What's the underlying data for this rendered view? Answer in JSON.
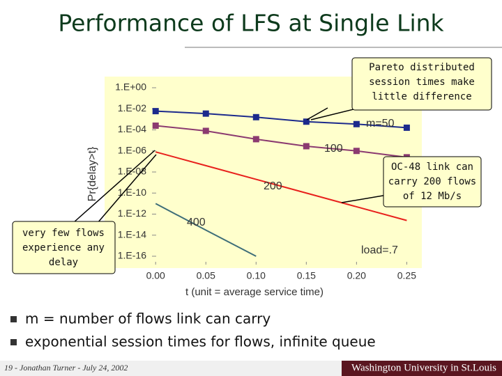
{
  "slide": {
    "title": "Performance of LFS at Single Link",
    "callouts": [
      "Pareto distributed",
      "session times make",
      "little difference",
      "OC-48 link can",
      "carry 200 flows",
      "of 12 Mb/s",
      "very few flows",
      "experience any",
      "delay"
    ],
    "bullets": [
      "m = number of flows link can carry",
      "exponential session times for flows, infinite queue"
    ],
    "footer": "19 - Jonathan Turner - July 24, 2002",
    "logo": "Washington University in St.Louis"
  },
  "chart_data": {
    "type": "line",
    "ylabel": "Pr{delay>t}",
    "xlabel": "t (unit = average service time)",
    "annotation": "load=.7",
    "yscale": "log",
    "x": [
      0,
      0.05,
      0.1,
      0.15,
      0.2,
      0.25
    ],
    "xlim": [
      -0.03,
      0.265
    ],
    "xticks": [
      {
        "value": 0,
        "label": "0.00"
      },
      {
        "value": 0.05,
        "label": "0.05"
      },
      {
        "value": 0.1,
        "label": "0.10"
      },
      {
        "value": 0.15,
        "label": "0.15"
      },
      {
        "value": 0.2,
        "label": "0.20"
      },
      {
        "value": 0.25,
        "label": "0.25"
      }
    ],
    "ylim": [
      1e-16,
      1
    ],
    "yticks": [
      {
        "value": 1,
        "label": "1.E+00"
      },
      {
        "value": 0.01,
        "label": "1.E-02"
      },
      {
        "value": 0.0001,
        "label": "1.E-04"
      },
      {
        "value": 1e-06,
        "label": "1.E-06"
      },
      {
        "value": 1e-08,
        "label": "1.E-08"
      },
      {
        "value": 1e-10,
        "label": "1.E-10"
      },
      {
        "value": 1e-12,
        "label": "1.E-12"
      },
      {
        "value": 1e-14,
        "label": "1.E-14"
      },
      {
        "value": 1e-16,
        "label": "1.E-16"
      }
    ],
    "series": [
      {
        "name": "m=50",
        "color": "#1c2a8c",
        "markers": true,
        "values": [
          0.006,
          0.0035,
          0.0016,
          0.0006,
          0.00035,
          0.00016
        ]
      },
      {
        "name": "100",
        "color": "#8b3a70",
        "markers": true,
        "values": [
          0.00025,
          8e-05,
          1.3e-05,
          2.8e-06,
          1e-06,
          2.5e-07
        ]
      },
      {
        "name": "200",
        "color": "#e8201c",
        "markers": false,
        "values": [
          8e-07,
          4e-08,
          2e-09,
          1e-10,
          5e-12,
          2.5e-13
        ]
      },
      {
        "name": "400",
        "color": "#3d6d78",
        "markers": false,
        "values": [
          1e-11,
          3e-14,
          1e-16,
          null,
          null,
          null
        ]
      }
    ]
  }
}
